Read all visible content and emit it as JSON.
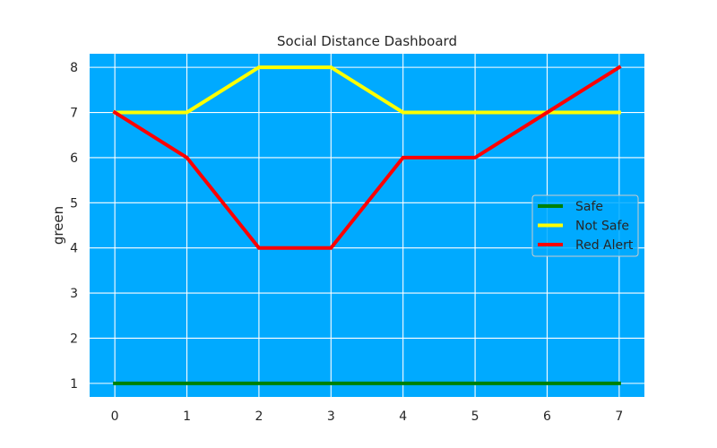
{
  "chart_data": {
    "type": "line",
    "title": "Social Distance Dashboard",
    "xlabel": "",
    "ylabel": "green",
    "x": [
      0,
      1,
      2,
      3,
      4,
      5,
      6,
      7
    ],
    "xlim": [
      -0.35,
      7.35
    ],
    "ylim": [
      0.7,
      8.3
    ],
    "yticks": [
      1,
      2,
      3,
      4,
      5,
      6,
      7,
      8
    ],
    "grid": true,
    "legend_position": "center-right",
    "background_color": "#00AAFF",
    "grid_color": "#FFFFFF",
    "series": [
      {
        "name": "Safe",
        "values": [
          1,
          1,
          1,
          1,
          1,
          1,
          1,
          1
        ],
        "color": "#008000"
      },
      {
        "name": "Not Safe",
        "values": [
          7,
          7,
          8,
          8,
          7,
          7,
          7,
          7
        ],
        "color": "#FFFF00"
      },
      {
        "name": "Red Alert",
        "values": [
          7,
          6,
          4,
          4,
          6,
          6,
          7,
          8
        ],
        "color": "#FF0000"
      }
    ]
  }
}
